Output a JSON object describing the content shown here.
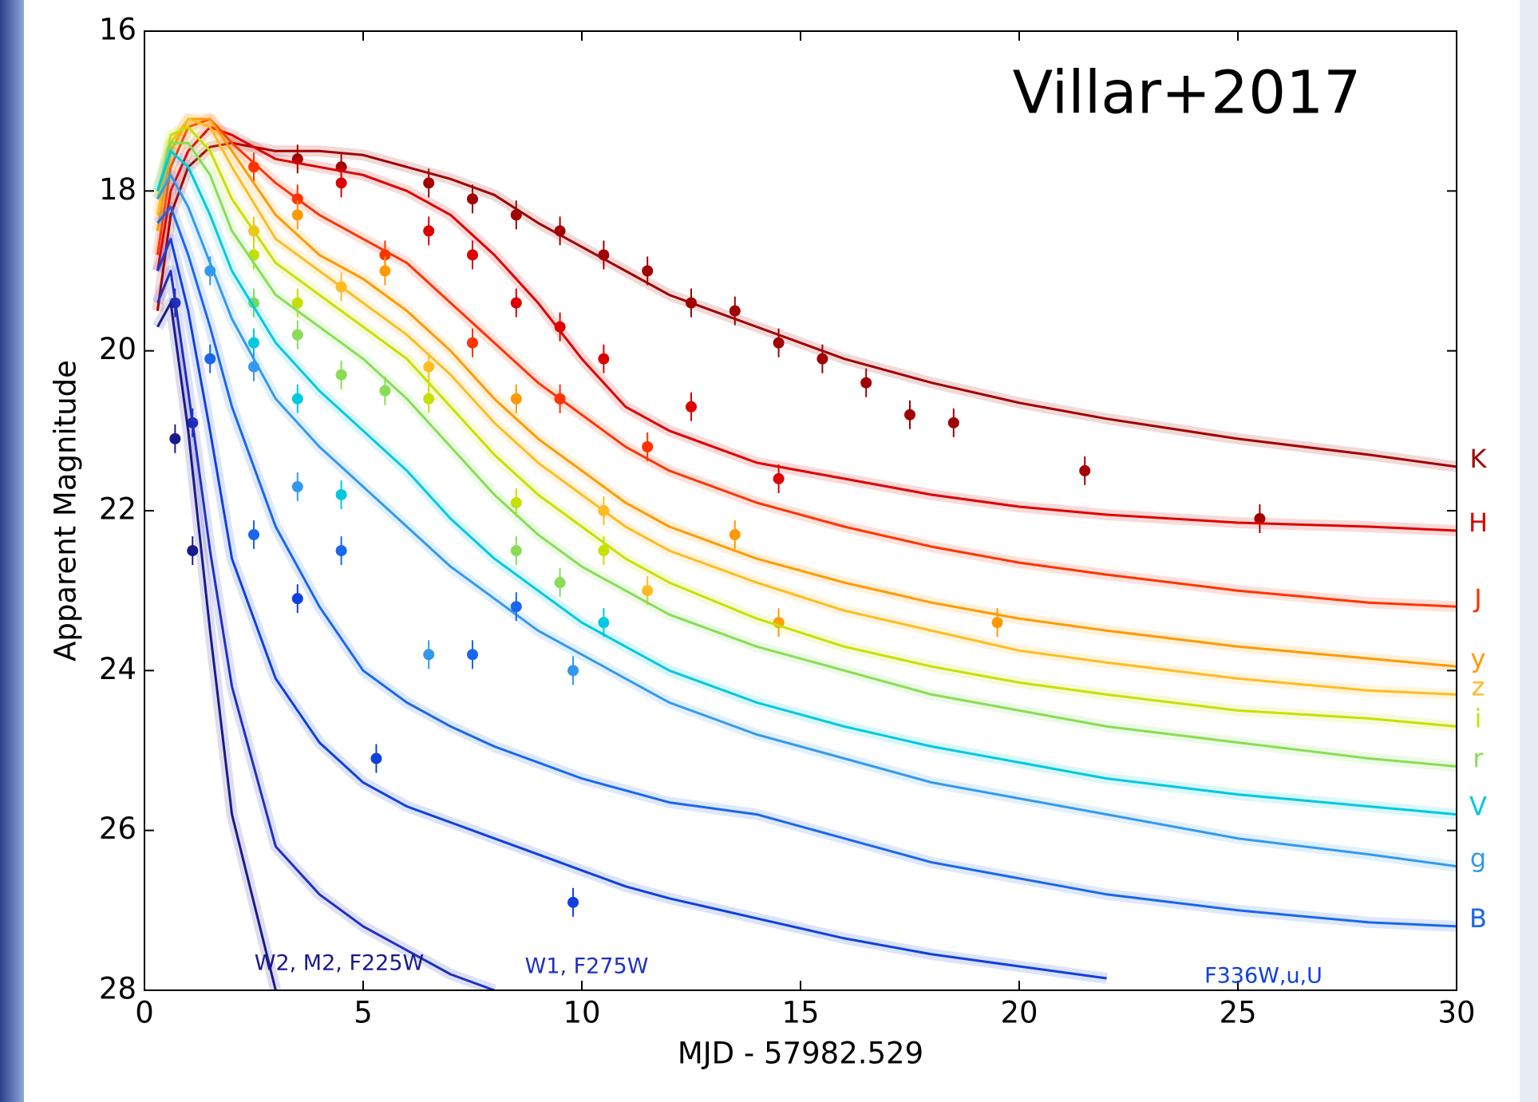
{
  "chart_data": {
    "type": "line",
    "title": "Villar+2017",
    "x_label": "MJD - 57982.529",
    "y_label": "Apparent Magnitude",
    "xlim": [
      0,
      30
    ],
    "xticks": [
      0,
      5,
      10,
      15,
      20,
      25,
      30
    ],
    "ylim": [
      16,
      28
    ],
    "yticks": [
      16,
      18,
      20,
      22,
      24,
      26,
      28
    ],
    "y_inverted": true,
    "grid": false,
    "x": [
      0.3,
      0.6,
      1,
      1.5,
      2,
      3,
      4,
      5,
      6,
      7,
      8,
      9,
      10,
      11,
      12,
      14,
      16,
      18,
      20,
      22,
      25,
      28,
      30
    ],
    "series": [
      {
        "name": "K",
        "color": "#a00000",
        "values": [
          19.5,
          18.3,
          17.7,
          17.45,
          17.4,
          17.5,
          17.5,
          17.55,
          17.7,
          17.85,
          18.05,
          18.4,
          18.7,
          19.0,
          19.3,
          19.7,
          20.1,
          20.4,
          20.65,
          20.85,
          21.1,
          21.3,
          21.45
        ],
        "obs_x": [
          3.5,
          4.5,
          6.5,
          7.5,
          8.5,
          9.5,
          10.5,
          11.5,
          12.5,
          13.5,
          14.5,
          15.5,
          16.5,
          17.5,
          18.5,
          21.5,
          25.5
        ],
        "obs_y": [
          17.6,
          17.7,
          17.9,
          18.1,
          18.3,
          18.5,
          18.8,
          19.0,
          19.4,
          19.5,
          19.9,
          20.1,
          20.4,
          20.8,
          20.9,
          21.5,
          22.1
        ]
      },
      {
        "name": "H",
        "color": "#dd0000",
        "values": [
          19.0,
          18.0,
          17.5,
          17.2,
          17.3,
          17.6,
          17.7,
          17.8,
          18.0,
          18.3,
          18.8,
          19.4,
          20.1,
          20.7,
          21.0,
          21.4,
          21.6,
          21.8,
          21.95,
          22.05,
          22.15,
          22.2,
          22.25
        ],
        "obs_x": [
          4.5,
          6.5,
          7.5,
          8.5,
          9.5,
          10.5,
          12.5,
          14.5
        ],
        "obs_y": [
          17.9,
          18.5,
          18.8,
          19.4,
          19.7,
          20.1,
          20.7,
          21.6
        ]
      },
      {
        "name": "J",
        "color": "#ff3300",
        "values": [
          18.8,
          17.7,
          17.2,
          17.1,
          17.4,
          17.9,
          18.3,
          18.6,
          18.9,
          19.4,
          19.9,
          20.4,
          20.8,
          21.2,
          21.5,
          21.9,
          22.2,
          22.45,
          22.65,
          22.8,
          23.0,
          23.15,
          23.2
        ],
        "obs_x": [
          2.5,
          3.5,
          5.5,
          7.5,
          9.5,
          11.5
        ],
        "obs_y": [
          17.7,
          18.1,
          18.8,
          19.9,
          20.6,
          21.2
        ]
      },
      {
        "name": "y",
        "color": "#ff9900",
        "values": [
          18.5,
          17.5,
          17.1,
          17.1,
          17.5,
          18.3,
          18.8,
          19.1,
          19.5,
          20.0,
          20.6,
          21.1,
          21.5,
          21.9,
          22.2,
          22.6,
          22.9,
          23.15,
          23.35,
          23.5,
          23.7,
          23.85,
          23.95
        ],
        "obs_x": [
          3.5,
          5.5,
          8.5,
          13.5,
          14.5,
          19.5
        ],
        "obs_y": [
          18.3,
          19.0,
          20.6,
          22.3,
          23.4,
          23.4
        ]
      },
      {
        "name": "z",
        "color": "#ffbb22",
        "values": [
          18.3,
          17.4,
          17.1,
          17.2,
          17.7,
          18.6,
          19.0,
          19.4,
          19.8,
          20.3,
          20.9,
          21.4,
          21.8,
          22.2,
          22.5,
          22.9,
          23.25,
          23.5,
          23.75,
          23.9,
          24.1,
          24.25,
          24.3
        ],
        "obs_x": [
          2.5,
          4.5,
          6.5,
          10.5,
          11.5
        ],
        "obs_y": [
          18.5,
          19.2,
          20.2,
          22.0,
          23.0
        ]
      },
      {
        "name": "i",
        "color": "#c8e000",
        "values": [
          18.1,
          17.3,
          17.2,
          17.5,
          18.1,
          18.9,
          19.3,
          19.7,
          20.1,
          20.7,
          21.3,
          21.8,
          22.2,
          22.6,
          22.9,
          23.35,
          23.7,
          23.95,
          24.15,
          24.3,
          24.5,
          24.6,
          24.7
        ],
        "obs_x": [
          2.5,
          3.5,
          6.5,
          8.5,
          10.5
        ],
        "obs_y": [
          18.8,
          19.4,
          20.6,
          21.9,
          22.5
        ]
      },
      {
        "name": "r",
        "color": "#88dd55",
        "values": [
          18.0,
          17.4,
          17.4,
          17.8,
          18.5,
          19.3,
          19.7,
          20.1,
          20.6,
          21.2,
          21.8,
          22.3,
          22.7,
          23.0,
          23.3,
          23.7,
          24.0,
          24.3,
          24.5,
          24.7,
          24.9,
          25.1,
          25.2
        ],
        "obs_x": [
          2.5,
          3.5,
          4.5,
          5.5,
          8.5,
          9.5
        ],
        "obs_y": [
          19.4,
          19.8,
          20.3,
          20.5,
          22.5,
          22.9
        ]
      },
      {
        "name": "V",
        "color": "#00c8e0",
        "values": [
          18.0,
          17.5,
          17.7,
          18.3,
          19.0,
          19.9,
          20.5,
          21.0,
          21.5,
          22.1,
          22.6,
          23.0,
          23.4,
          23.7,
          24.0,
          24.4,
          24.7,
          24.95,
          25.15,
          25.35,
          25.55,
          25.7,
          25.8
        ],
        "obs_x": [
          2.5,
          3.5,
          4.5,
          10.5
        ],
        "obs_y": [
          19.9,
          20.6,
          21.8,
          23.4
        ]
      },
      {
        "name": "g",
        "color": "#3399ee",
        "values": [
          18.1,
          17.8,
          18.2,
          18.9,
          19.6,
          20.6,
          21.2,
          21.7,
          22.2,
          22.7,
          23.1,
          23.5,
          23.8,
          24.1,
          24.4,
          24.8,
          25.1,
          25.4,
          25.6,
          25.8,
          26.1,
          26.3,
          26.45
        ],
        "obs_x": [
          1.5,
          2.5,
          3.5,
          6.5,
          9.8
        ],
        "obs_y": [
          19.0,
          20.2,
          21.7,
          23.8,
          24.0
        ]
      },
      {
        "name": "B",
        "color": "#1a66ee",
        "values": [
          18.4,
          18.2,
          18.8,
          19.7,
          20.7,
          22.2,
          23.2,
          24.0,
          24.4,
          24.7,
          24.95,
          25.15,
          25.35,
          25.5,
          25.65,
          25.8,
          26.1,
          26.4,
          26.6,
          26.8,
          27.0,
          27.15,
          27.2
        ],
        "obs_x": [
          1.5,
          2.5,
          4.5,
          7.5,
          8.5
        ],
        "obs_y": [
          20.1,
          22.3,
          22.5,
          23.8,
          23.2
        ]
      },
      {
        "name": "F336W,u,U",
        "color": "#1040dd",
        "values": [
          19.0,
          18.6,
          19.5,
          21.0,
          22.6,
          24.1,
          24.9,
          25.4,
          25.7,
          25.9,
          26.1,
          26.3,
          26.5,
          26.7,
          26.85,
          27.1,
          27.35,
          27.55,
          27.7,
          27.85,
          null,
          null,
          null
        ],
        "obs_x": [
          3.5,
          5.3,
          9.8
        ],
        "obs_y": [
          23.1,
          25.1,
          26.9
        ]
      },
      {
        "name": "W1, F275W",
        "color": "#2030c0",
        "values": [
          19.4,
          19.0,
          20.5,
          22.5,
          24.2,
          26.2,
          26.8,
          27.2,
          27.5,
          27.8,
          28.0,
          null,
          null,
          null,
          null,
          null,
          null,
          null,
          null,
          null,
          null,
          null,
          null
        ],
        "obs_x": [
          0.7,
          1.1
        ],
        "obs_y": [
          19.4,
          20.9
        ]
      },
      {
        "name": "W2, M2, F225W",
        "color": "#1a1a8c",
        "values": [
          19.7,
          19.4,
          21.0,
          23.5,
          25.8,
          28.0,
          null,
          null,
          null,
          null,
          null,
          null,
          null,
          null,
          null,
          null,
          null,
          null,
          null,
          null,
          null,
          null,
          null
        ],
        "obs_x": [
          0.7,
          1.1
        ],
        "obs_y": [
          21.1,
          22.5
        ]
      }
    ]
  }
}
